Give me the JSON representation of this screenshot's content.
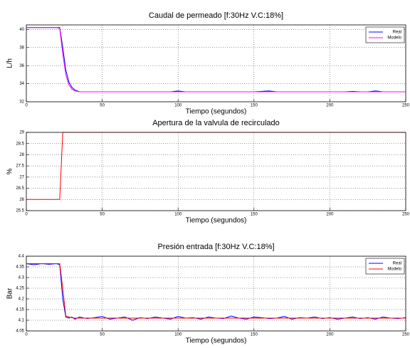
{
  "chart_data": [
    {
      "type": "line",
      "title": "Caudal de permeado  [f:30Hz V.C:18%]",
      "x_label": "Tiempo (segundos)",
      "y_label": "L/h",
      "x": [
        0,
        5,
        10,
        15,
        20,
        22,
        24,
        26,
        28,
        30,
        32,
        35,
        40,
        45,
        50,
        55,
        60,
        65,
        70,
        75,
        80,
        85,
        90,
        95,
        100,
        105,
        110,
        115,
        120,
        125,
        130,
        135,
        140,
        145,
        150,
        155,
        160,
        165,
        170,
        175,
        180,
        185,
        190,
        195,
        200,
        205,
        210,
        215,
        220,
        225,
        230,
        235,
        240,
        245,
        250
      ],
      "series": [
        {
          "name": "Real",
          "color": "#0000ff",
          "values": [
            40.2,
            40.2,
            40.2,
            40.2,
            40.2,
            40.2,
            38.0,
            35.5,
            34.2,
            33.6,
            33.3,
            33.1,
            33.1,
            33.1,
            33.1,
            33.1,
            33.1,
            33.1,
            33.1,
            33.1,
            33.1,
            33.1,
            33.1,
            33.1,
            33.2,
            33.1,
            33.1,
            33.1,
            33.1,
            33.1,
            33.1,
            33.1,
            33.1,
            33.1,
            33.1,
            33.15,
            33.2,
            33.1,
            33.1,
            33.1,
            33.1,
            33.1,
            33.1,
            33.1,
            33.1,
            33.1,
            33.1,
            33.15,
            33.1,
            33.1,
            33.2,
            33.1,
            33.1,
            33.1,
            33.1
          ]
        },
        {
          "name": "Modelo",
          "color": "#ff00ff",
          "values": [
            40.2,
            40.2,
            40.2,
            40.2,
            40.2,
            40.1,
            37.3,
            35.0,
            33.9,
            33.4,
            33.2,
            33.1,
            33.1,
            33.1,
            33.1,
            33.1,
            33.1,
            33.1,
            33.1,
            33.1,
            33.1,
            33.1,
            33.1,
            33.1,
            33.1,
            33.1,
            33.1,
            33.1,
            33.1,
            33.1,
            33.1,
            33.1,
            33.1,
            33.1,
            33.1,
            33.1,
            33.1,
            33.1,
            33.1,
            33.1,
            33.1,
            33.1,
            33.1,
            33.1,
            33.1,
            33.1,
            33.1,
            33.1,
            33.1,
            33.1,
            33.1,
            33.1,
            33.1,
            33.1,
            33.1
          ]
        }
      ],
      "xlim": [
        0,
        250
      ],
      "xticks": [
        0,
        50,
        100,
        150,
        200,
        250
      ],
      "ylim": [
        32,
        40.5
      ],
      "yticks": [
        32,
        34,
        36,
        38,
        40
      ],
      "grid": true,
      "legend": "upper right"
    },
    {
      "type": "line",
      "title": "Apertura de la valvula de recirculado",
      "x_label": "Tiempo (segundos)",
      "y_label": "%",
      "x": [
        0,
        5,
        10,
        15,
        20,
        22,
        24,
        26,
        28,
        30,
        32,
        35,
        40,
        45,
        50,
        55,
        60,
        65,
        70,
        75,
        80,
        85,
        90,
        95,
        100,
        105,
        110,
        115,
        120,
        125,
        130,
        135,
        140,
        145,
        150,
        155,
        160,
        165,
        170,
        175,
        180,
        185,
        190,
        195,
        200,
        205,
        210,
        215,
        220,
        225,
        230,
        235,
        240,
        245,
        250
      ],
      "series": [
        {
          "color": "#ff0000",
          "values": [
            26,
            26,
            26,
            26,
            26,
            26,
            29,
            29,
            29,
            29,
            29,
            29,
            29,
            29,
            29,
            29,
            29,
            29,
            29,
            29,
            29,
            29,
            29,
            29,
            29,
            29,
            29,
            29,
            29,
            29,
            29,
            29,
            29,
            29,
            29,
            29,
            29,
            29,
            29,
            29,
            29,
            29,
            29,
            29,
            29,
            29,
            29,
            29,
            29,
            29,
            29,
            29,
            29,
            29,
            29
          ]
        }
      ],
      "xlim": [
        0,
        250
      ],
      "xticks": [
        0,
        50,
        100,
        150,
        200,
        250
      ],
      "ylim": [
        25.5,
        29
      ],
      "yticks": [
        25.5,
        26,
        26.5,
        27,
        27.5,
        28,
        28.5,
        29
      ],
      "grid": true
    },
    {
      "type": "line",
      "title": "Presión entrada [f:30Hz V.C:18%]",
      "x_label": "Tiempo (segundos)",
      "y_label": "Bar",
      "x": [
        0,
        5,
        10,
        15,
        20,
        22,
        24,
        26,
        28,
        30,
        32,
        35,
        40,
        45,
        50,
        55,
        60,
        65,
        70,
        75,
        80,
        85,
        90,
        95,
        100,
        105,
        110,
        115,
        120,
        125,
        130,
        135,
        140,
        145,
        150,
        155,
        160,
        165,
        170,
        175,
        180,
        185,
        190,
        195,
        200,
        205,
        210,
        215,
        220,
        225,
        230,
        235,
        240,
        245,
        250
      ],
      "series": [
        {
          "name": "Real",
          "color": "#0000ff",
          "values": [
            4.365,
            4.36,
            4.365,
            4.362,
            4.365,
            4.36,
            4.2,
            4.115,
            4.11,
            4.115,
            4.105,
            4.115,
            4.108,
            4.112,
            4.118,
            4.105,
            4.11,
            4.115,
            4.1,
            4.112,
            4.108,
            4.115,
            4.11,
            4.105,
            4.118,
            4.11,
            4.112,
            4.105,
            4.115,
            4.11,
            4.108,
            4.12,
            4.11,
            4.105,
            4.115,
            4.112,
            4.108,
            4.11,
            4.118,
            4.105,
            4.112,
            4.11,
            4.115,
            4.108,
            4.112,
            4.105,
            4.11,
            4.115,
            4.108,
            4.112,
            4.105,
            4.115,
            4.11,
            4.108,
            4.112
          ]
        },
        {
          "name": "Modelo",
          "color": "#ff0000",
          "values": [
            4.365,
            4.365,
            4.365,
            4.365,
            4.365,
            4.365,
            4.25,
            4.12,
            4.115,
            4.112,
            4.11,
            4.11,
            4.11,
            4.11,
            4.11,
            4.11,
            4.11,
            4.11,
            4.11,
            4.11,
            4.11,
            4.11,
            4.11,
            4.11,
            4.11,
            4.11,
            4.11,
            4.11,
            4.11,
            4.11,
            4.11,
            4.11,
            4.11,
            4.11,
            4.11,
            4.11,
            4.11,
            4.11,
            4.11,
            4.11,
            4.11,
            4.11,
            4.11,
            4.11,
            4.11,
            4.11,
            4.11,
            4.11,
            4.11,
            4.11,
            4.11,
            4.11,
            4.11,
            4.11,
            4.11
          ]
        }
      ],
      "xlim": [
        0,
        250
      ],
      "xticks": [
        0,
        50,
        100,
        150,
        200,
        250
      ],
      "ylim": [
        4.05,
        4.4
      ],
      "yticks": [
        4.05,
        4.1,
        4.15,
        4.2,
        4.25,
        4.3,
        4.35,
        4.4
      ],
      "grid": true,
      "legend": "upper right"
    }
  ]
}
